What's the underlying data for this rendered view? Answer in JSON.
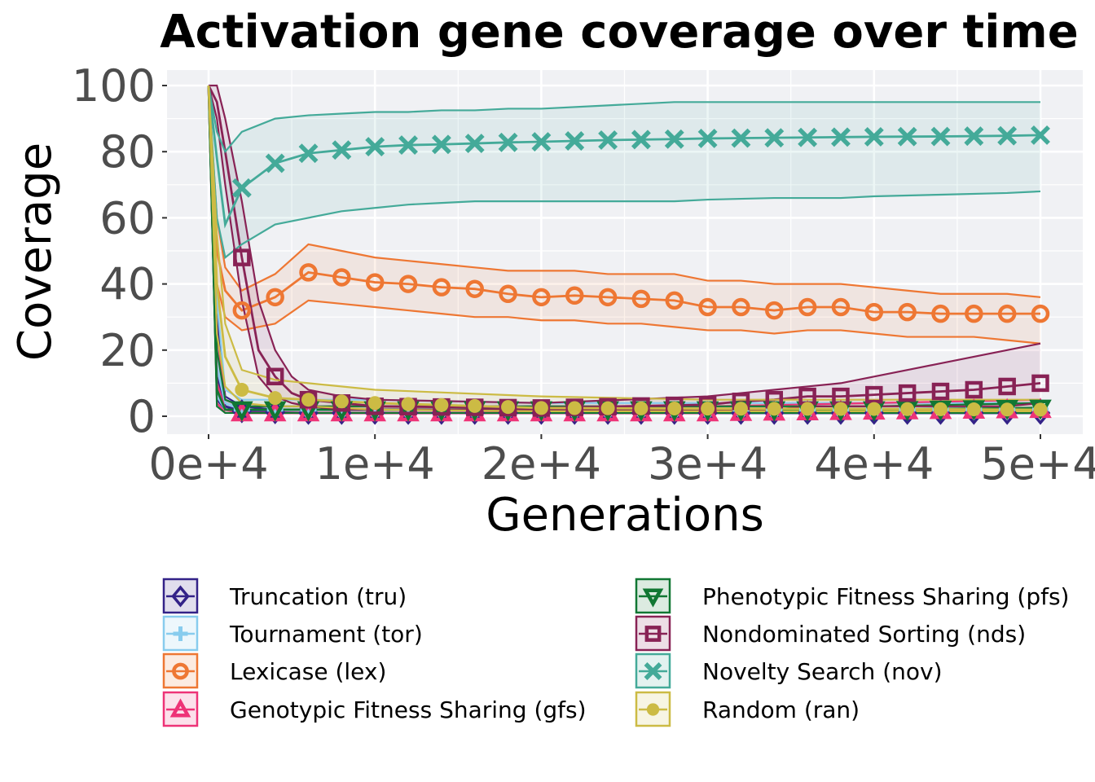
{
  "chart_data": {
    "type": "line",
    "title": "Activation gene coverage over time",
    "xlabel": "Generations",
    "ylabel": "Coverage",
    "xlim": [
      0,
      50000
    ],
    "ylim": [
      0,
      100
    ],
    "xticks": [
      0,
      10000,
      20000,
      30000,
      40000,
      50000
    ],
    "xtick_labels": [
      "0e+4",
      "1e+4",
      "2e+4",
      "3e+4",
      "4e+4",
      "5e+4"
    ],
    "yticks": [
      0,
      20,
      40,
      60,
      80,
      100
    ],
    "ytick_labels": [
      "0",
      "20",
      "40",
      "60",
      "80",
      "100"
    ],
    "grid": true,
    "legend_position": "bottom",
    "series": [
      {
        "name": "Truncation (tru)",
        "color": "#332288",
        "marker": "diamond",
        "x": [
          0,
          500,
          1000,
          2000,
          4000,
          6000,
          10000,
          20000,
          30000,
          40000,
          50000
        ],
        "values": [
          100,
          12,
          3,
          1.5,
          1.2,
          1,
          1,
          1,
          1,
          1,
          1
        ],
        "lower": [
          100,
          5,
          2,
          1,
          1,
          1,
          1,
          1,
          1,
          1,
          1
        ],
        "upper": [
          100,
          30,
          6,
          3,
          2,
          2,
          2,
          2,
          2,
          2,
          2
        ]
      },
      {
        "name": "Tournament (tor)",
        "color": "#88CCEE",
        "marker": "plus",
        "x": [
          0,
          500,
          1000,
          2000,
          4000,
          6000,
          10000,
          20000,
          30000,
          40000,
          50000
        ],
        "values": [
          100,
          15,
          4,
          2,
          2,
          2,
          2,
          2,
          2,
          2,
          2
        ],
        "lower": [
          100,
          6,
          2,
          1,
          1,
          1,
          1,
          1,
          1,
          1,
          1
        ],
        "upper": [
          100,
          35,
          8,
          5,
          5,
          5,
          5,
          4,
          4,
          4,
          4
        ]
      },
      {
        "name": "Lexicase (lex)",
        "color": "#EE7733",
        "marker": "circle-open",
        "x": [
          0,
          500,
          1000,
          2000,
          4000,
          6000,
          8000,
          10000,
          12000,
          14000,
          16000,
          18000,
          20000,
          22000,
          24000,
          26000,
          28000,
          30000,
          32000,
          34000,
          36000,
          38000,
          40000,
          42000,
          44000,
          46000,
          48000,
          50000
        ],
        "values": [
          100,
          50,
          38,
          32,
          36,
          43.5,
          42,
          40.5,
          40,
          39,
          38.5,
          37,
          36,
          36.5,
          36,
          35.5,
          35,
          33,
          33,
          32,
          33,
          33,
          31.5,
          31.5,
          31,
          31,
          31,
          31
        ],
        "lower": [
          100,
          40,
          30,
          26,
          28,
          35,
          34,
          33,
          32,
          31,
          30,
          30,
          29,
          29,
          28,
          28,
          27,
          26,
          26,
          25,
          26,
          26,
          25,
          24,
          24,
          24,
          23,
          22
        ],
        "upper": [
          100,
          60,
          45,
          38,
          43,
          52,
          50,
          48,
          47,
          46,
          45,
          44,
          44,
          44,
          43,
          43,
          43,
          41,
          41,
          40,
          40,
          40,
          39,
          38,
          37,
          37,
          37,
          36
        ]
      },
      {
        "name": "Genotypic Fitness Sharing (gfs)",
        "color": "#EE3377",
        "marker": "triangle-up",
        "x": [
          0,
          500,
          1000,
          2000,
          4000,
          6000,
          10000,
          20000,
          30000,
          40000,
          50000
        ],
        "values": [
          100,
          10,
          2,
          1,
          1,
          1,
          1,
          1,
          1,
          1.5,
          2
        ],
        "lower": [
          100,
          4,
          1,
          1,
          1,
          1,
          1,
          1,
          1,
          1,
          1
        ],
        "upper": [
          100,
          25,
          5,
          3,
          3,
          3,
          3,
          3,
          3,
          4,
          5
        ]
      },
      {
        "name": "Phenotypic Fitness Sharing (pfs)",
        "color": "#117733",
        "marker": "triangle-down",
        "x": [
          0,
          500,
          1000,
          2000,
          4000,
          6000,
          10000,
          20000,
          30000,
          40000,
          50000
        ],
        "values": [
          100,
          8,
          2,
          2,
          2,
          2,
          2,
          2,
          2,
          2,
          2.5
        ],
        "lower": [
          100,
          3,
          1,
          1,
          1,
          1,
          1,
          1,
          1,
          1,
          1
        ],
        "upper": [
          100,
          20,
          5,
          3,
          3,
          3,
          3,
          3,
          3,
          3,
          4
        ]
      },
      {
        "name": "Nondominated Sorting (nds)",
        "color": "#882255",
        "marker": "square-open",
        "x": [
          0,
          500,
          1000,
          2000,
          3000,
          4000,
          5000,
          6000,
          8000,
          10000,
          20000,
          30000,
          32000,
          34000,
          36000,
          38000,
          40000,
          42000,
          44000,
          46000,
          48000,
          50000
        ],
        "values": [
          100,
          95,
          80,
          48,
          20,
          12,
          7,
          5,
          4,
          3,
          2.5,
          3.5,
          4.5,
          5,
          6,
          6,
          6.5,
          7,
          7.5,
          8,
          9,
          10
        ],
        "lower": [
          100,
          90,
          70,
          35,
          12,
          6,
          4,
          3,
          2,
          2,
          2,
          2,
          2,
          2,
          3,
          3,
          3,
          3,
          3,
          3,
          3,
          4
        ],
        "upper": [
          100,
          100,
          90,
          65,
          35,
          20,
          12,
          8,
          6,
          5,
          4,
          6,
          7,
          8,
          9,
          10,
          12,
          14,
          16,
          18,
          20,
          22
        ]
      },
      {
        "name": "Novelty Search (nov)",
        "color": "#44AA99",
        "marker": "x",
        "x": [
          0,
          500,
          1000,
          2000,
          4000,
          6000,
          8000,
          10000,
          12000,
          14000,
          16000,
          18000,
          20000,
          24000,
          28000,
          30000,
          34000,
          38000,
          40000,
          44000,
          48000,
          50000
        ],
        "values": [
          100,
          78,
          58,
          69,
          76.5,
          79.5,
          80.5,
          81.5,
          82,
          82.2,
          82.5,
          82.8,
          83,
          83.5,
          83.8,
          84,
          84.2,
          84.4,
          84.5,
          84.6,
          84.8,
          85
        ],
        "lower": [
          100,
          60,
          48,
          52,
          58,
          60,
          62,
          63,
          64,
          64.5,
          65,
          65,
          65,
          65,
          65,
          65.5,
          66,
          66,
          66.5,
          67,
          67.5,
          68
        ],
        "upper": [
          100,
          86,
          80,
          86,
          90,
          91,
          91.5,
          92,
          92,
          92.5,
          92.5,
          93,
          93,
          94,
          95,
          95,
          95,
          95,
          95,
          95,
          95,
          95
        ]
      },
      {
        "name": "Random (ran)",
        "color": "#CCBB44",
        "marker": "circle-filled",
        "x": [
          0,
          500,
          1000,
          2000,
          4000,
          6000,
          10000,
          20000,
          30000,
          40000,
          50000
        ],
        "values": [
          100,
          40,
          18,
          8,
          5.5,
          5,
          4,
          2.5,
          2.3,
          2.2,
          2
        ],
        "lower": [
          100,
          25,
          9,
          4,
          3,
          3,
          2,
          1.5,
          1.5,
          1.5,
          1.5
        ],
        "upper": [
          100,
          55,
          28,
          14,
          11,
          10,
          8,
          6,
          5,
          5,
          5
        ]
      }
    ]
  }
}
